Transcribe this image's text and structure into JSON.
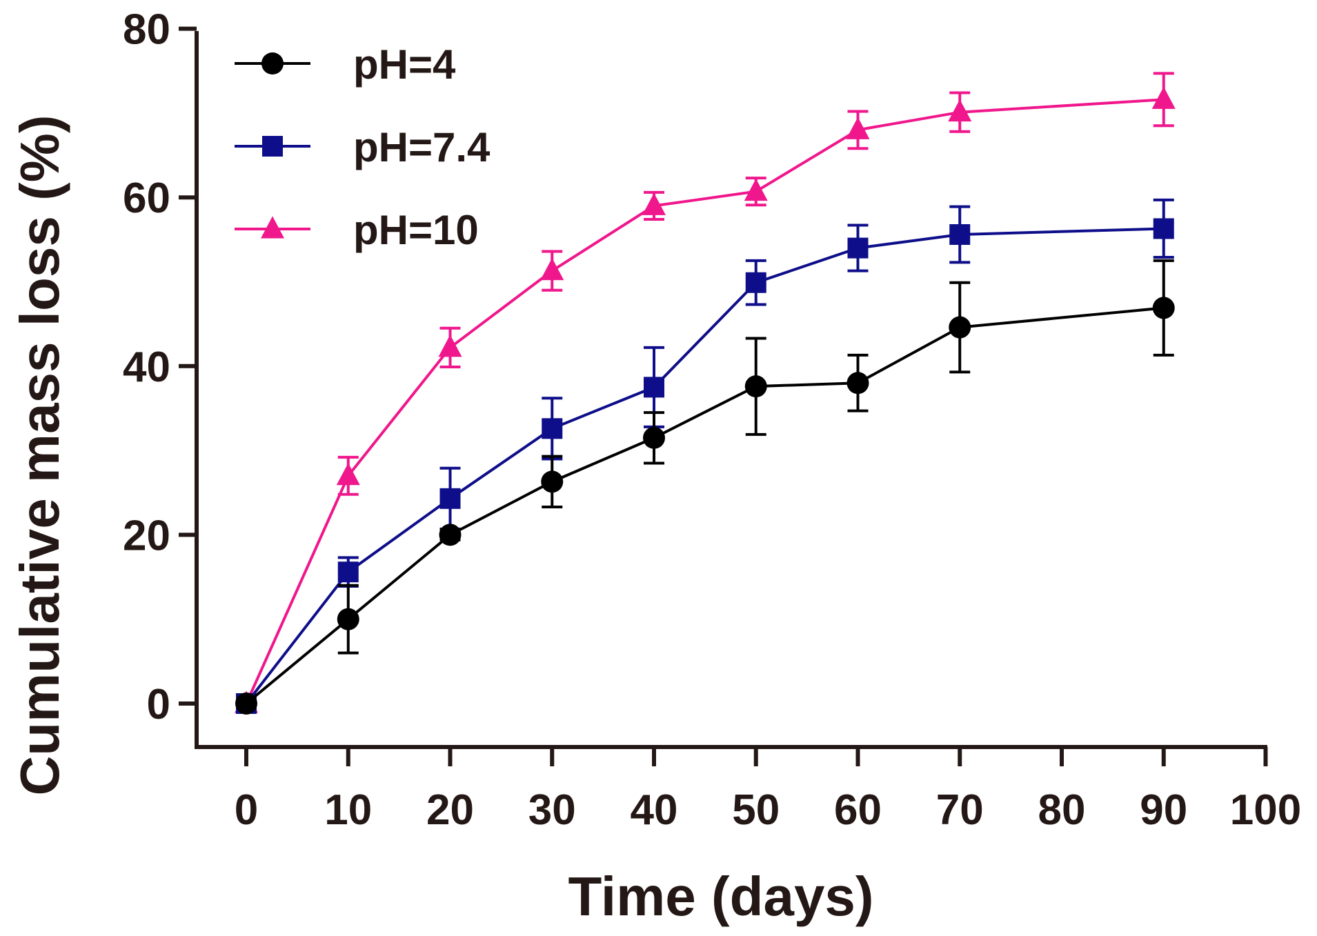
{
  "chart_data": {
    "type": "line",
    "title": "",
    "xlabel": "Time (days)",
    "ylabel": "Cumulative mass loss (%)",
    "xlim": [
      -5,
      100
    ],
    "ylim": [
      -5,
      80
    ],
    "xticks": [
      0,
      10,
      20,
      30,
      40,
      50,
      60,
      70,
      80,
      90,
      100
    ],
    "yticks": [
      0,
      20,
      40,
      60,
      80
    ],
    "x": [
      0,
      10,
      20,
      30,
      40,
      50,
      60,
      70,
      90
    ],
    "legend_position": "top-left",
    "grid": false,
    "series": [
      {
        "name": "pH=4",
        "color": "#000000",
        "marker": "circle",
        "values": [
          0,
          10,
          20,
          26.3,
          31.5,
          37.6,
          38,
          44.6,
          46.9
        ],
        "errors": [
          0,
          4,
          0.6,
          3,
          3,
          5.7,
          3.3,
          5.3,
          5.6
        ]
      },
      {
        "name": "pH=7.4",
        "color": "#0e0e8a",
        "marker": "square",
        "values": [
          0,
          15.6,
          24.3,
          32.6,
          37.5,
          49.9,
          54,
          55.6,
          56.3
        ],
        "errors": [
          0,
          1.7,
          3.6,
          3.6,
          4.7,
          2.6,
          2.7,
          3.3,
          3.4
        ]
      },
      {
        "name": "pH=10",
        "color": "#f0168c",
        "marker": "triangle",
        "values": [
          0,
          27,
          42.2,
          51.3,
          59,
          60.7,
          68,
          70.1,
          71.6
        ],
        "errors": [
          0,
          2.2,
          2.3,
          2.3,
          1.6,
          1.6,
          2.2,
          2.3,
          3.1
        ]
      }
    ]
  }
}
